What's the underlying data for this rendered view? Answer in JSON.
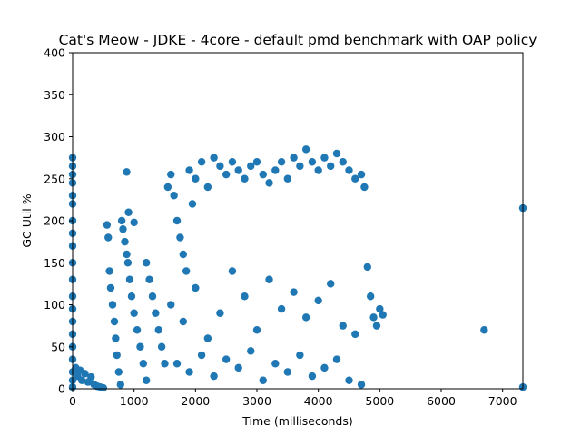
{
  "chart_data": {
    "type": "scatter",
    "title": "Cat's Meow - JDKE - 4core -  default pmd benchmark with OAP policy",
    "xlabel": "Time (milliseconds)",
    "ylabel": "GC Util %",
    "xlim": [
      0,
      7330
    ],
    "ylim": [
      0,
      400
    ],
    "xticks": [
      0,
      1000,
      2000,
      3000,
      4000,
      5000,
      6000,
      7000
    ],
    "yticks": [
      0,
      50,
      100,
      150,
      200,
      250,
      300,
      350,
      400
    ],
    "grid": false,
    "legend": "none",
    "series": [
      {
        "color": "#1f77b4",
        "marker": "circle",
        "points": [
          [
            0,
            275
          ],
          [
            0,
            265
          ],
          [
            0,
            255
          ],
          [
            0,
            245
          ],
          [
            0,
            230
          ],
          [
            0,
            220
          ],
          [
            0,
            200
          ],
          [
            0,
            185
          ],
          [
            0,
            170
          ],
          [
            0,
            150
          ],
          [
            0,
            130
          ],
          [
            0,
            110
          ],
          [
            0,
            95
          ],
          [
            0,
            80
          ],
          [
            0,
            65
          ],
          [
            0,
            50
          ],
          [
            0,
            35
          ],
          [
            0,
            20
          ],
          [
            0,
            10
          ],
          [
            0,
            2
          ],
          [
            50,
            25
          ],
          [
            80,
            15
          ],
          [
            120,
            22
          ],
          [
            150,
            10
          ],
          [
            200,
            18
          ],
          [
            250,
            8
          ],
          [
            300,
            14
          ],
          [
            350,
            5
          ],
          [
            400,
            3
          ],
          [
            450,
            2
          ],
          [
            500,
            1
          ],
          [
            560,
            195
          ],
          [
            580,
            180
          ],
          [
            600,
            140
          ],
          [
            620,
            120
          ],
          [
            650,
            100
          ],
          [
            680,
            80
          ],
          [
            700,
            60
          ],
          [
            720,
            40
          ],
          [
            750,
            20
          ],
          [
            780,
            5
          ],
          [
            800,
            200
          ],
          [
            820,
            190
          ],
          [
            850,
            175
          ],
          [
            880,
            160
          ],
          [
            900,
            150
          ],
          [
            930,
            130
          ],
          [
            960,
            110
          ],
          [
            1000,
            90
          ],
          [
            1050,
            70
          ],
          [
            1100,
            50
          ],
          [
            1150,
            30
          ],
          [
            1200,
            10
          ],
          [
            880,
            258
          ],
          [
            910,
            210
          ],
          [
            1000,
            198
          ],
          [
            1200,
            150
          ],
          [
            1250,
            130
          ],
          [
            1300,
            110
          ],
          [
            1350,
            90
          ],
          [
            1400,
            70
          ],
          [
            1450,
            50
          ],
          [
            1500,
            30
          ],
          [
            1550,
            240
          ],
          [
            1600,
            255
          ],
          [
            1650,
            230
          ],
          [
            1700,
            200
          ],
          [
            1750,
            180
          ],
          [
            1800,
            160
          ],
          [
            1850,
            140
          ],
          [
            1900,
            260
          ],
          [
            1950,
            220
          ],
          [
            2000,
            250
          ],
          [
            2100,
            270
          ],
          [
            2200,
            240
          ],
          [
            2300,
            275
          ],
          [
            2400,
            265
          ],
          [
            2500,
            255
          ],
          [
            2600,
            270
          ],
          [
            2700,
            260
          ],
          [
            2800,
            250
          ],
          [
            2900,
            265
          ],
          [
            3000,
            270
          ],
          [
            3100,
            255
          ],
          [
            3200,
            245
          ],
          [
            3300,
            260
          ],
          [
            3400,
            270
          ],
          [
            3500,
            250
          ],
          [
            3600,
            275
          ],
          [
            3700,
            265
          ],
          [
            3800,
            285
          ],
          [
            3900,
            270
          ],
          [
            4000,
            260
          ],
          [
            4100,
            275
          ],
          [
            4200,
            265
          ],
          [
            4300,
            280
          ],
          [
            4400,
            270
          ],
          [
            4500,
            260
          ],
          [
            4600,
            250
          ],
          [
            4700,
            255
          ],
          [
            4750,
            240
          ],
          [
            1600,
            100
          ],
          [
            1800,
            80
          ],
          [
            2000,
            120
          ],
          [
            2200,
            60
          ],
          [
            2400,
            90
          ],
          [
            2600,
            140
          ],
          [
            2800,
            110
          ],
          [
            3000,
            70
          ],
          [
            3200,
            130
          ],
          [
            3400,
            95
          ],
          [
            3600,
            115
          ],
          [
            3800,
            85
          ],
          [
            4000,
            105
          ],
          [
            4200,
            125
          ],
          [
            4400,
            75
          ],
          [
            4600,
            65
          ],
          [
            1700,
            30
          ],
          [
            1900,
            20
          ],
          [
            2100,
            40
          ],
          [
            2300,
            15
          ],
          [
            2500,
            35
          ],
          [
            2700,
            25
          ],
          [
            2900,
            45
          ],
          [
            3100,
            10
          ],
          [
            3300,
            30
          ],
          [
            3500,
            20
          ],
          [
            3700,
            40
          ],
          [
            3900,
            15
          ],
          [
            4100,
            25
          ],
          [
            4300,
            35
          ],
          [
            4500,
            10
          ],
          [
            4700,
            5
          ],
          [
            4800,
            145
          ],
          [
            4850,
            110
          ],
          [
            4900,
            85
          ],
          [
            4950,
            75
          ],
          [
            5000,
            95
          ],
          [
            5050,
            88
          ],
          [
            6700,
            70
          ],
          [
            7330,
            215
          ],
          [
            7330,
            2
          ]
        ]
      }
    ]
  }
}
